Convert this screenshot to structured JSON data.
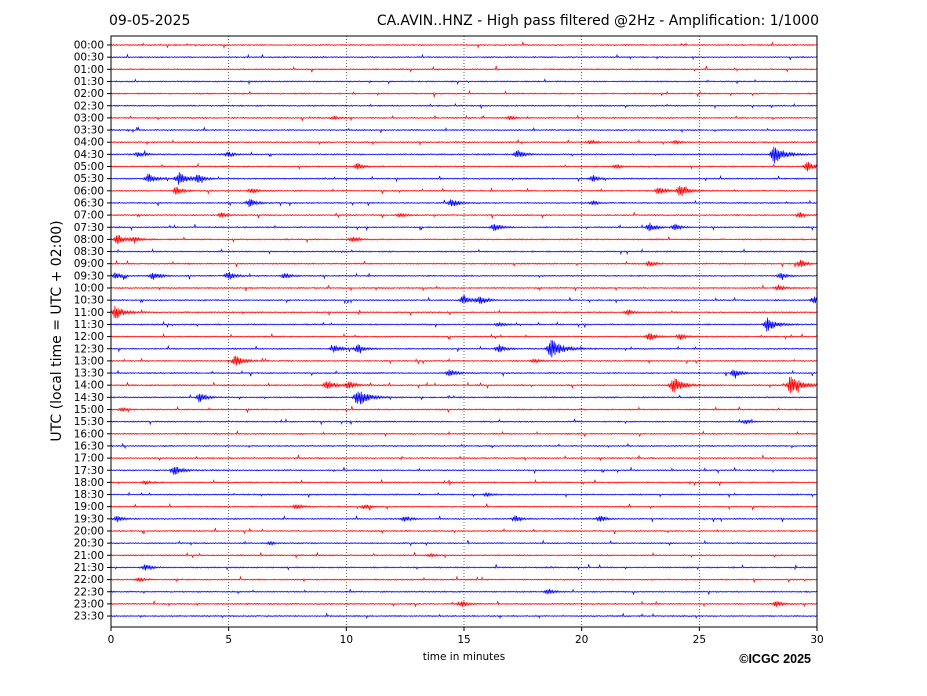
{
  "chart_data": {
    "type": "line",
    "chart_kind": "helicorder (seismogram drum plot)",
    "date_label": "09-05-2025",
    "title": "CA.AVIN..HNZ - High pass filtered @2Hz - Amplification: 1/1000",
    "xlabel": "time in minutes",
    "ylabel": "UTC (local time = UTC + 02:00)",
    "copyright": "©ICGC 2025",
    "xlim": [
      0,
      30
    ],
    "x_ticks": [
      "0",
      "5",
      "10",
      "15",
      "20",
      "25",
      "30"
    ],
    "x_gridlines": [
      5,
      10,
      15,
      20,
      25
    ],
    "grid": "vertical dotted lines at every 5 minutes",
    "trace_colors": [
      "#ff0000",
      "#0000ff"
    ],
    "color_pattern": "alternating red / blue by row, starting with red at 00:00",
    "rows": [
      {
        "label": "00:00",
        "events": []
      },
      {
        "label": "00:30",
        "events": []
      },
      {
        "label": "01:00",
        "events": []
      },
      {
        "label": "01:30",
        "events": []
      },
      {
        "label": "02:00",
        "events": []
      },
      {
        "label": "02:30",
        "events": []
      },
      {
        "label": "03:00",
        "events": [
          [
            9.5,
            1.5
          ],
          [
            17.0,
            1.8
          ]
        ]
      },
      {
        "label": "03:30",
        "events": []
      },
      {
        "label": "04:00",
        "events": [
          [
            20.4,
            2
          ],
          [
            24.0,
            2
          ]
        ]
      },
      {
        "label": "04:30",
        "events": [
          [
            1.2,
            3
          ],
          [
            5.0,
            2.5
          ],
          [
            17.3,
            4
          ],
          [
            28.2,
            9
          ]
        ]
      },
      {
        "label": "05:00",
        "events": [
          [
            10.5,
            3
          ],
          [
            21.5,
            2
          ],
          [
            29.6,
            5
          ]
        ]
      },
      {
        "label": "05:30",
        "events": [
          [
            1.6,
            5
          ],
          [
            2.9,
            6
          ],
          [
            3.7,
            4
          ],
          [
            20.5,
            3
          ]
        ]
      },
      {
        "label": "06:00",
        "events": [
          [
            2.8,
            4
          ],
          [
            6.0,
            3
          ],
          [
            23.3,
            4
          ],
          [
            24.2,
            6
          ]
        ]
      },
      {
        "label": "06:30",
        "events": [
          [
            5.9,
            4
          ],
          [
            14.5,
            4
          ],
          [
            20.5,
            2
          ]
        ]
      },
      {
        "label": "07:00",
        "events": [
          [
            4.7,
            2.5
          ],
          [
            12.3,
            2.5
          ],
          [
            29.3,
            2.5
          ]
        ]
      },
      {
        "label": "07:30",
        "events": [
          [
            16.3,
            4
          ],
          [
            22.9,
            4
          ],
          [
            24.0,
            3
          ]
        ]
      },
      {
        "label": "08:00",
        "events": [
          [
            0.3,
            5
          ],
          [
            1.0,
            3
          ],
          [
            10.3,
            3
          ]
        ]
      },
      {
        "label": "08:30",
        "events": []
      },
      {
        "label": "09:00",
        "events": [
          [
            22.9,
            3
          ],
          [
            29.3,
            4
          ]
        ]
      },
      {
        "label": "09:30",
        "events": [
          [
            0.2,
            3
          ],
          [
            1.8,
            4
          ],
          [
            5.0,
            4
          ],
          [
            7.4,
            3
          ],
          [
            28.5,
            3
          ]
        ]
      },
      {
        "label": "10:00",
        "events": [
          [
            28.4,
            3
          ]
        ]
      },
      {
        "label": "10:30",
        "events": [
          [
            15.0,
            5
          ],
          [
            15.7,
            4
          ],
          [
            29.9,
            4
          ]
        ]
      },
      {
        "label": "11:00",
        "events": [
          [
            0.2,
            7
          ],
          [
            22.0,
            2.5
          ]
        ]
      },
      {
        "label": "11:30",
        "events": [
          [
            16.5,
            2
          ],
          [
            27.9,
            7
          ]
        ]
      },
      {
        "label": "12:00",
        "events": [
          [
            22.9,
            4
          ],
          [
            24.2,
            3
          ]
        ]
      },
      {
        "label": "12:30",
        "events": [
          [
            9.5,
            4
          ],
          [
            10.5,
            4
          ],
          [
            16.5,
            4
          ],
          [
            18.7,
            10
          ]
        ]
      },
      {
        "label": "13:00",
        "events": [
          [
            5.3,
            6
          ],
          [
            18.0,
            2
          ]
        ]
      },
      {
        "label": "13:30",
        "events": [
          [
            14.4,
            4
          ],
          [
            26.5,
            4
          ]
        ]
      },
      {
        "label": "14:00",
        "events": [
          [
            9.2,
            5
          ],
          [
            10.1,
            4
          ],
          [
            23.9,
            8
          ],
          [
            28.9,
            10
          ]
        ]
      },
      {
        "label": "14:30",
        "events": [
          [
            3.8,
            4
          ],
          [
            10.5,
            9
          ]
        ]
      },
      {
        "label": "15:00",
        "events": [
          [
            0.5,
            2
          ]
        ]
      },
      {
        "label": "15:30",
        "events": [
          [
            27.0,
            2
          ]
        ]
      },
      {
        "label": "16:00",
        "events": []
      },
      {
        "label": "16:30",
        "events": []
      },
      {
        "label": "17:00",
        "events": []
      },
      {
        "label": "17:30",
        "events": [
          [
            2.7,
            5
          ]
        ]
      },
      {
        "label": "18:00",
        "events": [
          [
            1.5,
            2
          ]
        ]
      },
      {
        "label": "18:30",
        "events": [
          [
            16.0,
            2
          ]
        ]
      },
      {
        "label": "19:00",
        "events": [
          [
            7.9,
            2.5
          ],
          [
            10.8,
            2.5
          ]
        ]
      },
      {
        "label": "19:30",
        "events": [
          [
            0.3,
            3
          ],
          [
            12.5,
            3
          ],
          [
            17.2,
            3
          ],
          [
            20.8,
            3
          ]
        ]
      },
      {
        "label": "20:00",
        "events": []
      },
      {
        "label": "20:30",
        "events": [
          [
            6.8,
            1.5
          ]
        ]
      },
      {
        "label": "21:00",
        "events": [
          [
            13.6,
            1.5
          ]
        ]
      },
      {
        "label": "21:30",
        "events": [
          [
            1.5,
            3
          ]
        ]
      },
      {
        "label": "22:00",
        "events": [
          [
            1.2,
            2
          ]
        ]
      },
      {
        "label": "22:30",
        "events": [
          [
            18.6,
            3
          ]
        ]
      },
      {
        "label": "23:00",
        "events": [
          [
            14.9,
            3
          ],
          [
            28.3,
            3
          ]
        ]
      },
      {
        "label": "23:30",
        "events": []
      }
    ]
  }
}
